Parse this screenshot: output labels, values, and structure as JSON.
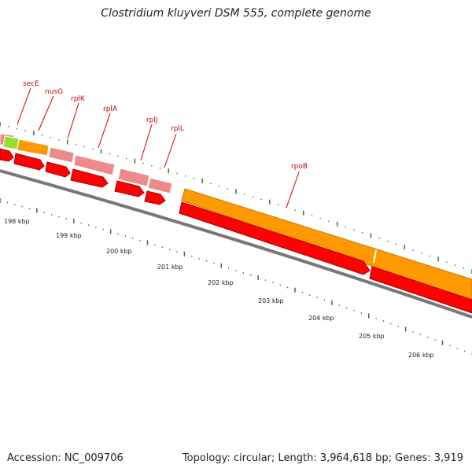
{
  "title": "Clostridium kluyveri DSM 555, complete genome",
  "footer": {
    "accession": "Accession: NC_009706",
    "topology": "Topology: circular; Length: 3,964,618 bp; Genes: 3,919"
  },
  "colors": {
    "gene_label": "#cc0000",
    "cds": "#ff0000",
    "orange_feature": "#ff9900",
    "pink_feature": "#f08a8a",
    "green_feature": "#99dd33",
    "backbone": "#777777",
    "ticks": "#2a7a2a"
  },
  "gene_labels": [
    "secE",
    "nusG",
    "rplK",
    "rplA",
    "rplJ",
    "rplL",
    "rpoB"
  ],
  "kbp_labels": [
    "198 kbp",
    "199 kbp",
    "200 kbp",
    "201 kbp",
    "202 kbp",
    "203 kbp",
    "204 kbp",
    "205 kbp",
    "206 kbp"
  ]
}
